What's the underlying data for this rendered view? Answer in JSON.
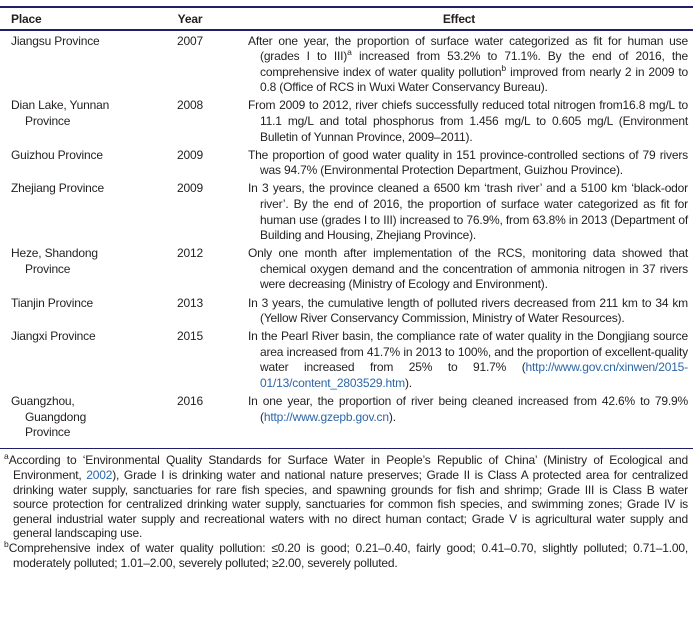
{
  "colors": {
    "text": "#231f20",
    "link": "#2b66a8",
    "rule": "#20206a",
    "background": "#ffffff"
  },
  "table": {
    "columns": [
      {
        "label": "Place"
      },
      {
        "label": "Year"
      },
      {
        "label": "Effect"
      }
    ],
    "rows": [
      {
        "place": "Jiangsu Province",
        "year": "2007",
        "effect": [
          {
            "t": "After one year, the proportion of surface water categorized as fit for human use (grades I to III)"
          },
          {
            "sup": "a"
          },
          {
            "t": " increased from 53.2% to 71.1%. By the end of 2016, the comprehensive index of water quality pollution"
          },
          {
            "sup": "b"
          },
          {
            "t": " improved from nearly 2 in 2009 to 0.8 (Office of RCS in Wuxi Water Conservancy Bureau)."
          }
        ]
      },
      {
        "place": "Dian Lake, Yunnan Province",
        "year": "2008",
        "effect": [
          {
            "t": "From 2009 to 2012, river chiefs successfully reduced total nitrogen from16.8 mg/L to 11.1 mg/L and total phosphorus from 1.456 mg/L to 0.605 mg/L (Environment Bulletin of Yunnan Province, 2009–2011)."
          }
        ]
      },
      {
        "place": "Guizhou Province",
        "year": "2009",
        "effect": [
          {
            "t": "The proportion of good water quality in 151 province-controlled sections of 79 rivers was 94.7% (Environmental Protection Department, Guizhou Province)."
          }
        ]
      },
      {
        "place": "Zhejiang Province",
        "year": "2009",
        "effect": [
          {
            "t": "In 3 years, the province cleaned a 6500 km ‘trash river’ and a 5100 km ‘black-odor river’. By the end of 2016, the proportion of surface water categorized as fit for human use (grades I to III) increased to 76.9%, from 63.8% in 2013 (Department of Building and Housing, Zhejiang Province)."
          }
        ]
      },
      {
        "place": "Heze, Shandong Province",
        "year": "2012",
        "effect": [
          {
            "t": "Only one month after implementation of the RCS, monitoring data showed that chemical oxygen demand and the concentration of ammonia nitrogen in 37 rivers were decreasing (Ministry of Ecology and Environment)."
          }
        ]
      },
      {
        "place": "Tianjin Province",
        "year": "2013",
        "effect": [
          {
            "t": "In 3 years, the cumulative length of polluted rivers decreased from 211 km to 34 km (Yellow River Conservancy Commission, Ministry of Water Resources)."
          }
        ]
      },
      {
        "place": "Jiangxi Province",
        "year": "2015",
        "effect": [
          {
            "t": "In the Pearl River basin, the compliance rate of water quality in the Dongjiang source area increased from 41.7% in 2013 to 100%, and the proportion of excellent-quality water increased from 25% to 91.7% ("
          },
          {
            "link": "http://www.gov.cn/xinwen/2015-01/13/content_2803529.htm"
          },
          {
            "t": ")."
          }
        ]
      },
      {
        "place": "Guangzhou, Guangdong Province",
        "year": "2016",
        "effect": [
          {
            "t": "In one year, the proportion of river being cleaned increased from 42.6% to 79.9% ("
          },
          {
            "link": "http://www.gzepb.gov.cn"
          },
          {
            "t": ")."
          }
        ]
      }
    ]
  },
  "footnotes": [
    {
      "marker": "a",
      "segments": [
        {
          "t": "According to ‘Environmental Quality Standards for Surface Water in People’s Republic of China’ (Ministry of Ecological and Environment, "
        },
        {
          "link": "2002"
        },
        {
          "t": "), Grade I is drinking water and national nature preserves; Grade II is Class A protected area for centralized drinking water supply, sanctuaries for rare fish species, and spawning grounds for fish and shrimp; Grade III is Class B water source protection for centralized drinking water supply, sanctuaries for common fish species, and swimming zones; Grade IV is general industrial water supply and recreational waters with no direct human contact; Grade V is agricultural water supply and general landscaping use."
        }
      ]
    },
    {
      "marker": "b",
      "segments": [
        {
          "t": "Comprehensive index of water quality pollution: ≤0.20 is good; 0.21–0.40, fairly good; 0.41–0.70, slightly polluted; 0.71–1.00, moderately polluted; 1.01–2.00, severely polluted; ≥2.00, severely polluted."
        }
      ]
    }
  ]
}
